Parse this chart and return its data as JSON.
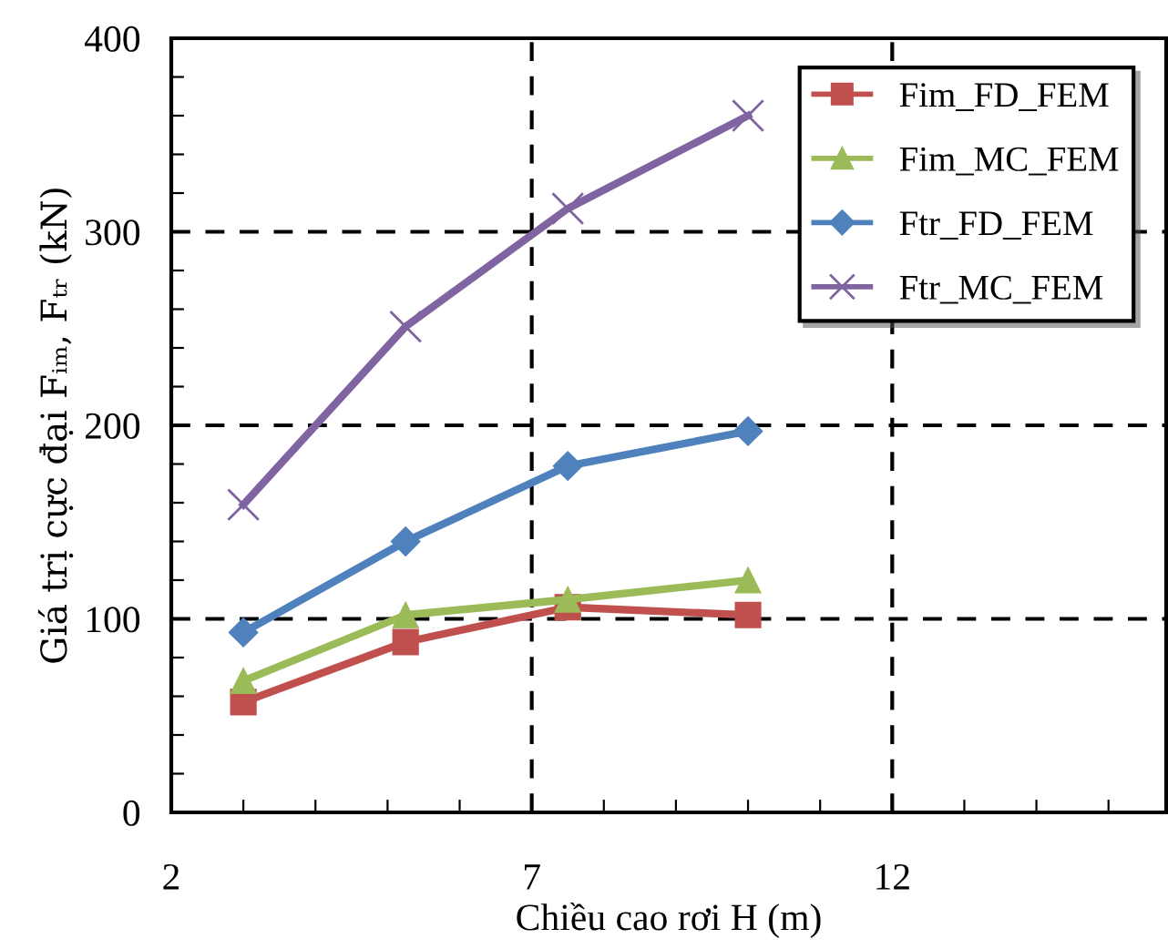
{
  "chart_data": {
    "type": "line",
    "xlabel": "Chiều cao rơi H (m)",
    "ylabel": "Giá trị cực đại Fᵢₘ, Fₜᵣ (kN)",
    "xlim": [
      2,
      15.8
    ],
    "ylim": [
      0,
      400
    ],
    "xticks": [
      2,
      {
        "value": 3,
        "label": null
      },
      {
        "value": 4,
        "label": null
      },
      {
        "value": 5,
        "label": null
      },
      {
        "value": 6,
        "label": null
      },
      7,
      {
        "value": 8,
        "label": null
      },
      {
        "value": 9,
        "label": null
      },
      {
        "value": 10,
        "label": null
      },
      {
        "value": 11,
        "label": null
      },
      12,
      {
        "value": 13,
        "label": null
      },
      {
        "value": 14,
        "label": null
      },
      {
        "value": 15,
        "label": null
      }
    ],
    "yticks": [
      0,
      {
        "value": 20,
        "label": null
      },
      {
        "value": 40,
        "label": null
      },
      {
        "value": 60,
        "label": null
      },
      {
        "value": 80,
        "label": null
      },
      100,
      {
        "value": 120,
        "label": null
      },
      {
        "value": 140,
        "label": null
      },
      {
        "value": 160,
        "label": null
      },
      {
        "value": 180,
        "label": null
      },
      200,
      {
        "value": 220,
        "label": null
      },
      {
        "value": 240,
        "label": null
      },
      {
        "value": 260,
        "label": null
      },
      {
        "value": 280,
        "label": null
      },
      300,
      {
        "value": 320,
        "label": null
      },
      {
        "value": 340,
        "label": null
      },
      {
        "value": 360,
        "label": null
      },
      {
        "value": 380,
        "label": null
      },
      400
    ],
    "x": [
      3,
      5.25,
      7.5,
      10
    ],
    "grid": true,
    "legend": "top right",
    "line_style": "solid",
    "series": [
      {
        "name": "Fim_FD_FEM",
        "color": "#c0504d",
        "marker": "square",
        "values": [
          57,
          88,
          106,
          102
        ]
      },
      {
        "name": "Fim_MC_FEM",
        "color": "#9bbb59",
        "marker": "triangle",
        "values": [
          68,
          102,
          110,
          120
        ]
      },
      {
        "name": "Ftr_FD_FEM",
        "color": "#4f81bd",
        "marker": "diamond",
        "values": [
          93,
          140,
          179,
          197
        ]
      },
      {
        "name": "Ftr_MC_FEM",
        "color": "#8064a2",
        "marker": "cross",
        "values": [
          159,
          251,
          312,
          360
        ]
      }
    ]
  }
}
